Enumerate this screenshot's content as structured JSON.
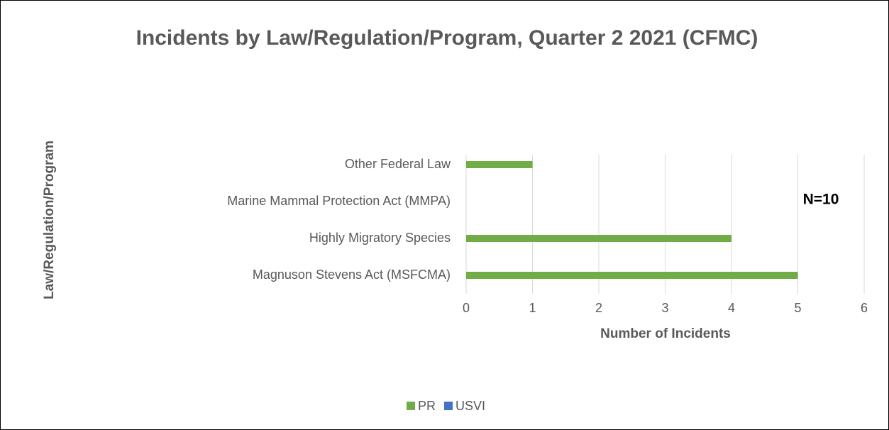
{
  "chart_data": {
    "type": "bar",
    "orientation": "horizontal",
    "title": "Incidents by Law/Regulation/Program, Quarter 2 2021 (CFMC)",
    "categories": [
      "Other Federal Law",
      "Marine Mammal Protection Act (MMPA)",
      "Highly Migratory Species",
      "Magnuson Stevens Act (MSFCMA)"
    ],
    "series": [
      {
        "name": "PR",
        "color": "#70ad47",
        "values": [
          1,
          0,
          4,
          5
        ]
      },
      {
        "name": "USVI",
        "color": "#4472c4",
        "values": [
          0,
          0,
          0,
          0
        ]
      }
    ],
    "xlim": [
      0,
      6
    ],
    "xticks": [
      0,
      1,
      2,
      3,
      4,
      5,
      6
    ],
    "grid": true,
    "x_label": "Number of Incidents",
    "y_label": "Law/Regulation/Program",
    "annotation": "N=10",
    "legend": "bottom"
  }
}
